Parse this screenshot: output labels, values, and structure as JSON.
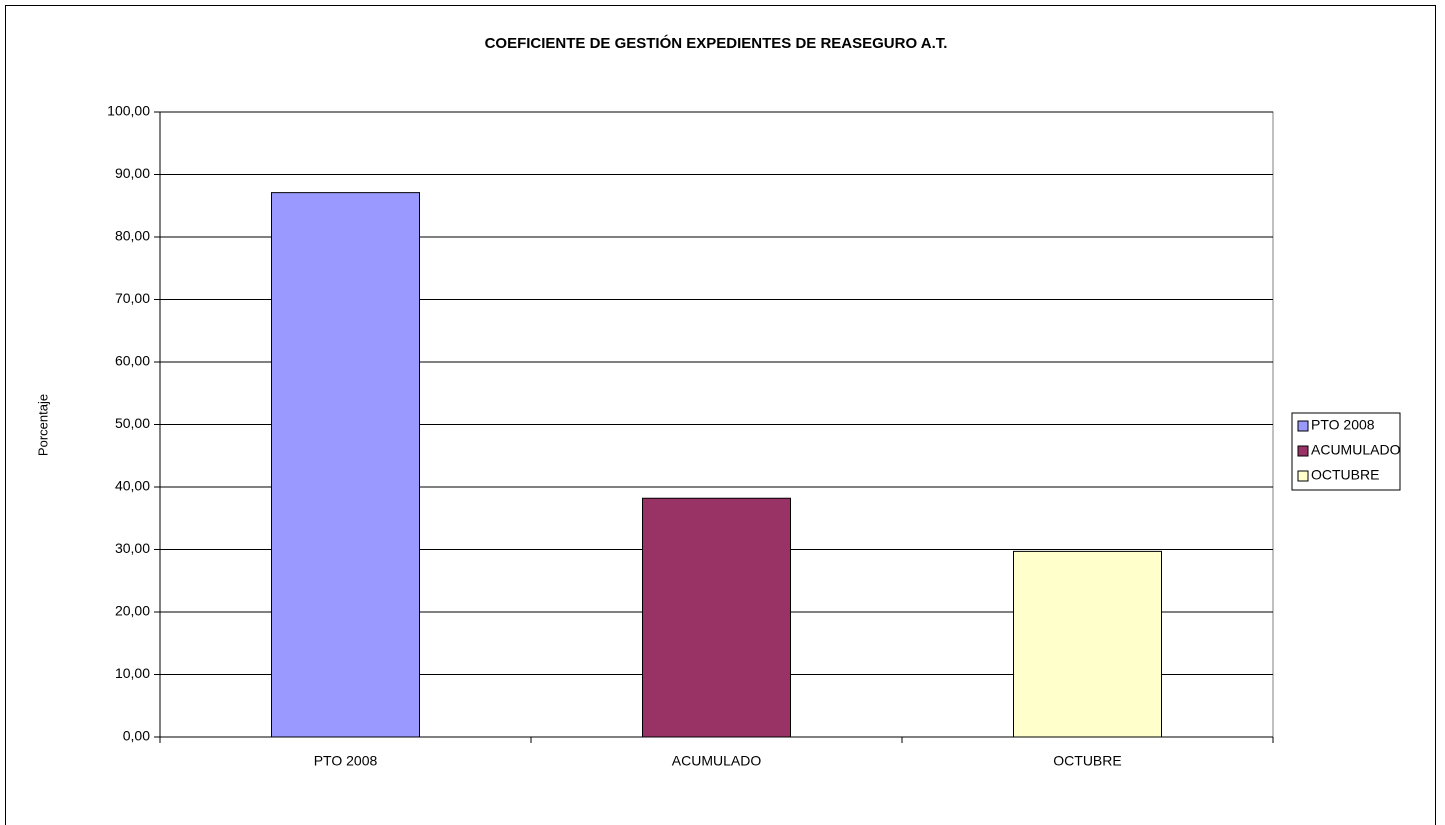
{
  "chart_data": {
    "type": "bar",
    "title": "COEFICIENTE DE GESTIÓN EXPEDIENTES DE REASEGURO A.T.",
    "y_label": "Porcentaje",
    "categories": [
      "PTO 2008",
      "ACUMULADO",
      "OCTUBRE"
    ],
    "values": [
      87.1,
      38.2,
      29.7
    ],
    "colors": [
      "#9999ff",
      "#993366",
      "#ffffcc"
    ],
    "ylim": [
      0,
      100
    ],
    "yticks": [
      {
        "value": 0,
        "label": "0,00"
      },
      {
        "value": 10,
        "label": "10,00"
      },
      {
        "value": 20,
        "label": "20,00"
      },
      {
        "value": 30,
        "label": "30,00"
      },
      {
        "value": 40,
        "label": "40,00"
      },
      {
        "value": 50,
        "label": "50,00"
      },
      {
        "value": 60,
        "label": "60,00"
      },
      {
        "value": 70,
        "label": "70,00"
      },
      {
        "value": 80,
        "label": "80,00"
      },
      {
        "value": 90,
        "label": "90,00"
      },
      {
        "value": 100,
        "label": "100,00"
      }
    ],
    "grid": true,
    "legend": "right"
  }
}
